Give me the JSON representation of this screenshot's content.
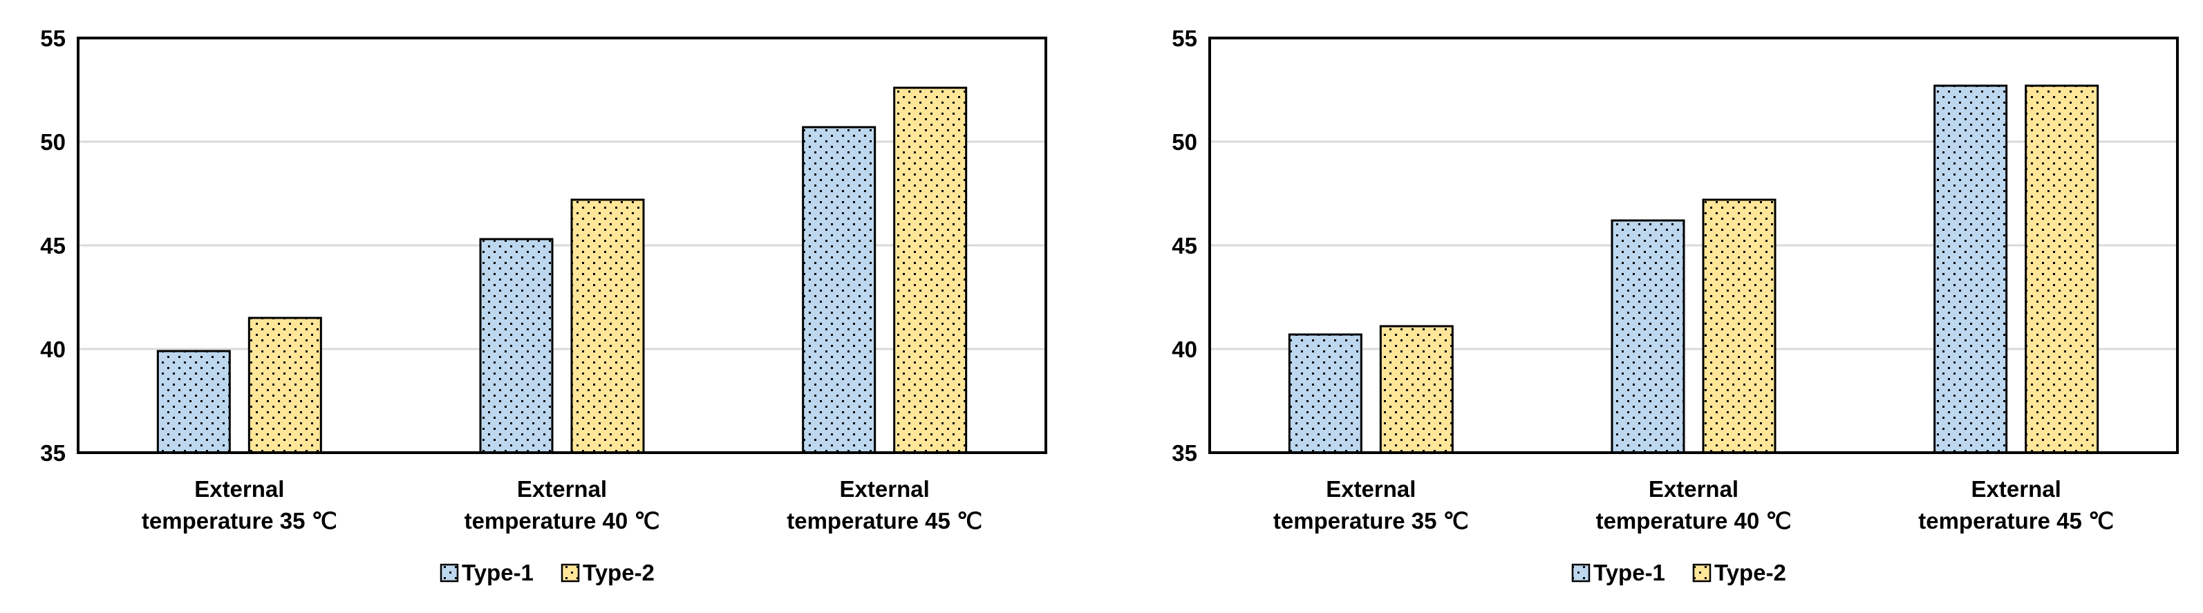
{
  "colors": {
    "type1_fill": "#bdd7ee",
    "type2_fill": "#ffe699",
    "dot": "#000000",
    "grid": "#d9d9d9",
    "axis": "#000000"
  },
  "chart_data": [
    {
      "type": "bar",
      "title": "",
      "xlabel": "",
      "ylabel": "",
      "ylim": [
        35,
        55
      ],
      "yticks": [
        35,
        40,
        45,
        50,
        55
      ],
      "grid": true,
      "legend_position": "bottom",
      "categories": [
        [
          "External",
          "temperature 35 ℃"
        ],
        [
          "External",
          "temperature 40 ℃"
        ],
        [
          "External",
          "temperature 45 ℃"
        ]
      ],
      "series": [
        {
          "name": "Type-1",
          "values": [
            39.9,
            45.3,
            50.7
          ]
        },
        {
          "name": "Type-2",
          "values": [
            41.5,
            47.2,
            52.6
          ]
        }
      ]
    },
    {
      "type": "bar",
      "title": "",
      "xlabel": "",
      "ylabel": "",
      "ylim": [
        35,
        55
      ],
      "yticks": [
        35,
        40,
        45,
        50,
        55
      ],
      "grid": true,
      "legend_position": "bottom",
      "categories": [
        [
          "External",
          "temperature 35 ℃"
        ],
        [
          "External",
          "temperature 40 ℃"
        ],
        [
          "External",
          "temperature 45 ℃"
        ]
      ],
      "series": [
        {
          "name": "Type-1",
          "values": [
            40.7,
            46.2,
            52.7
          ]
        },
        {
          "name": "Type-2",
          "values": [
            41.1,
            47.2,
            52.7
          ]
        }
      ]
    }
  ]
}
